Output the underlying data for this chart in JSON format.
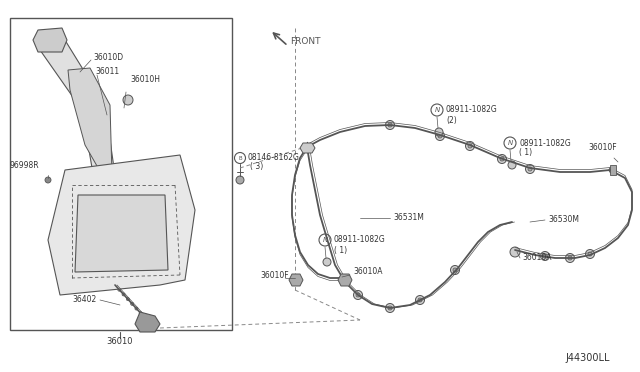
{
  "bg_color": "#ffffff",
  "line_color": "#888888",
  "dark_color": "#555555",
  "text_color": "#333333",
  "diagram_id": "J44300LL",
  "parts": {
    "36010": "36010",
    "36010D": "36010D",
    "36011": "36011",
    "36010H": "36010H",
    "96998R": "96998R",
    "36402": "36402",
    "08146_8162G_label": "08146-8162G",
    "08146_8162G_sub": "( 3)",
    "08911_1082G_2_label": "08911-1082G",
    "08911_1082G_2_sub": "(2)",
    "08911_1082G_1a_label": "08911-1082G",
    "08911_1082G_1a_sub": "( 1)",
    "08911_1082G_1b_label": "08911-1082G",
    "08911_1082G_1b_sub": "( 1)",
    "36531M": "36531M",
    "36530M": "36530M",
    "36010F_r": "36010F",
    "36010F_b": "36010F",
    "36010A_r": "36010A",
    "36010A_b": "36010A",
    "FRONT": "FRONT"
  }
}
